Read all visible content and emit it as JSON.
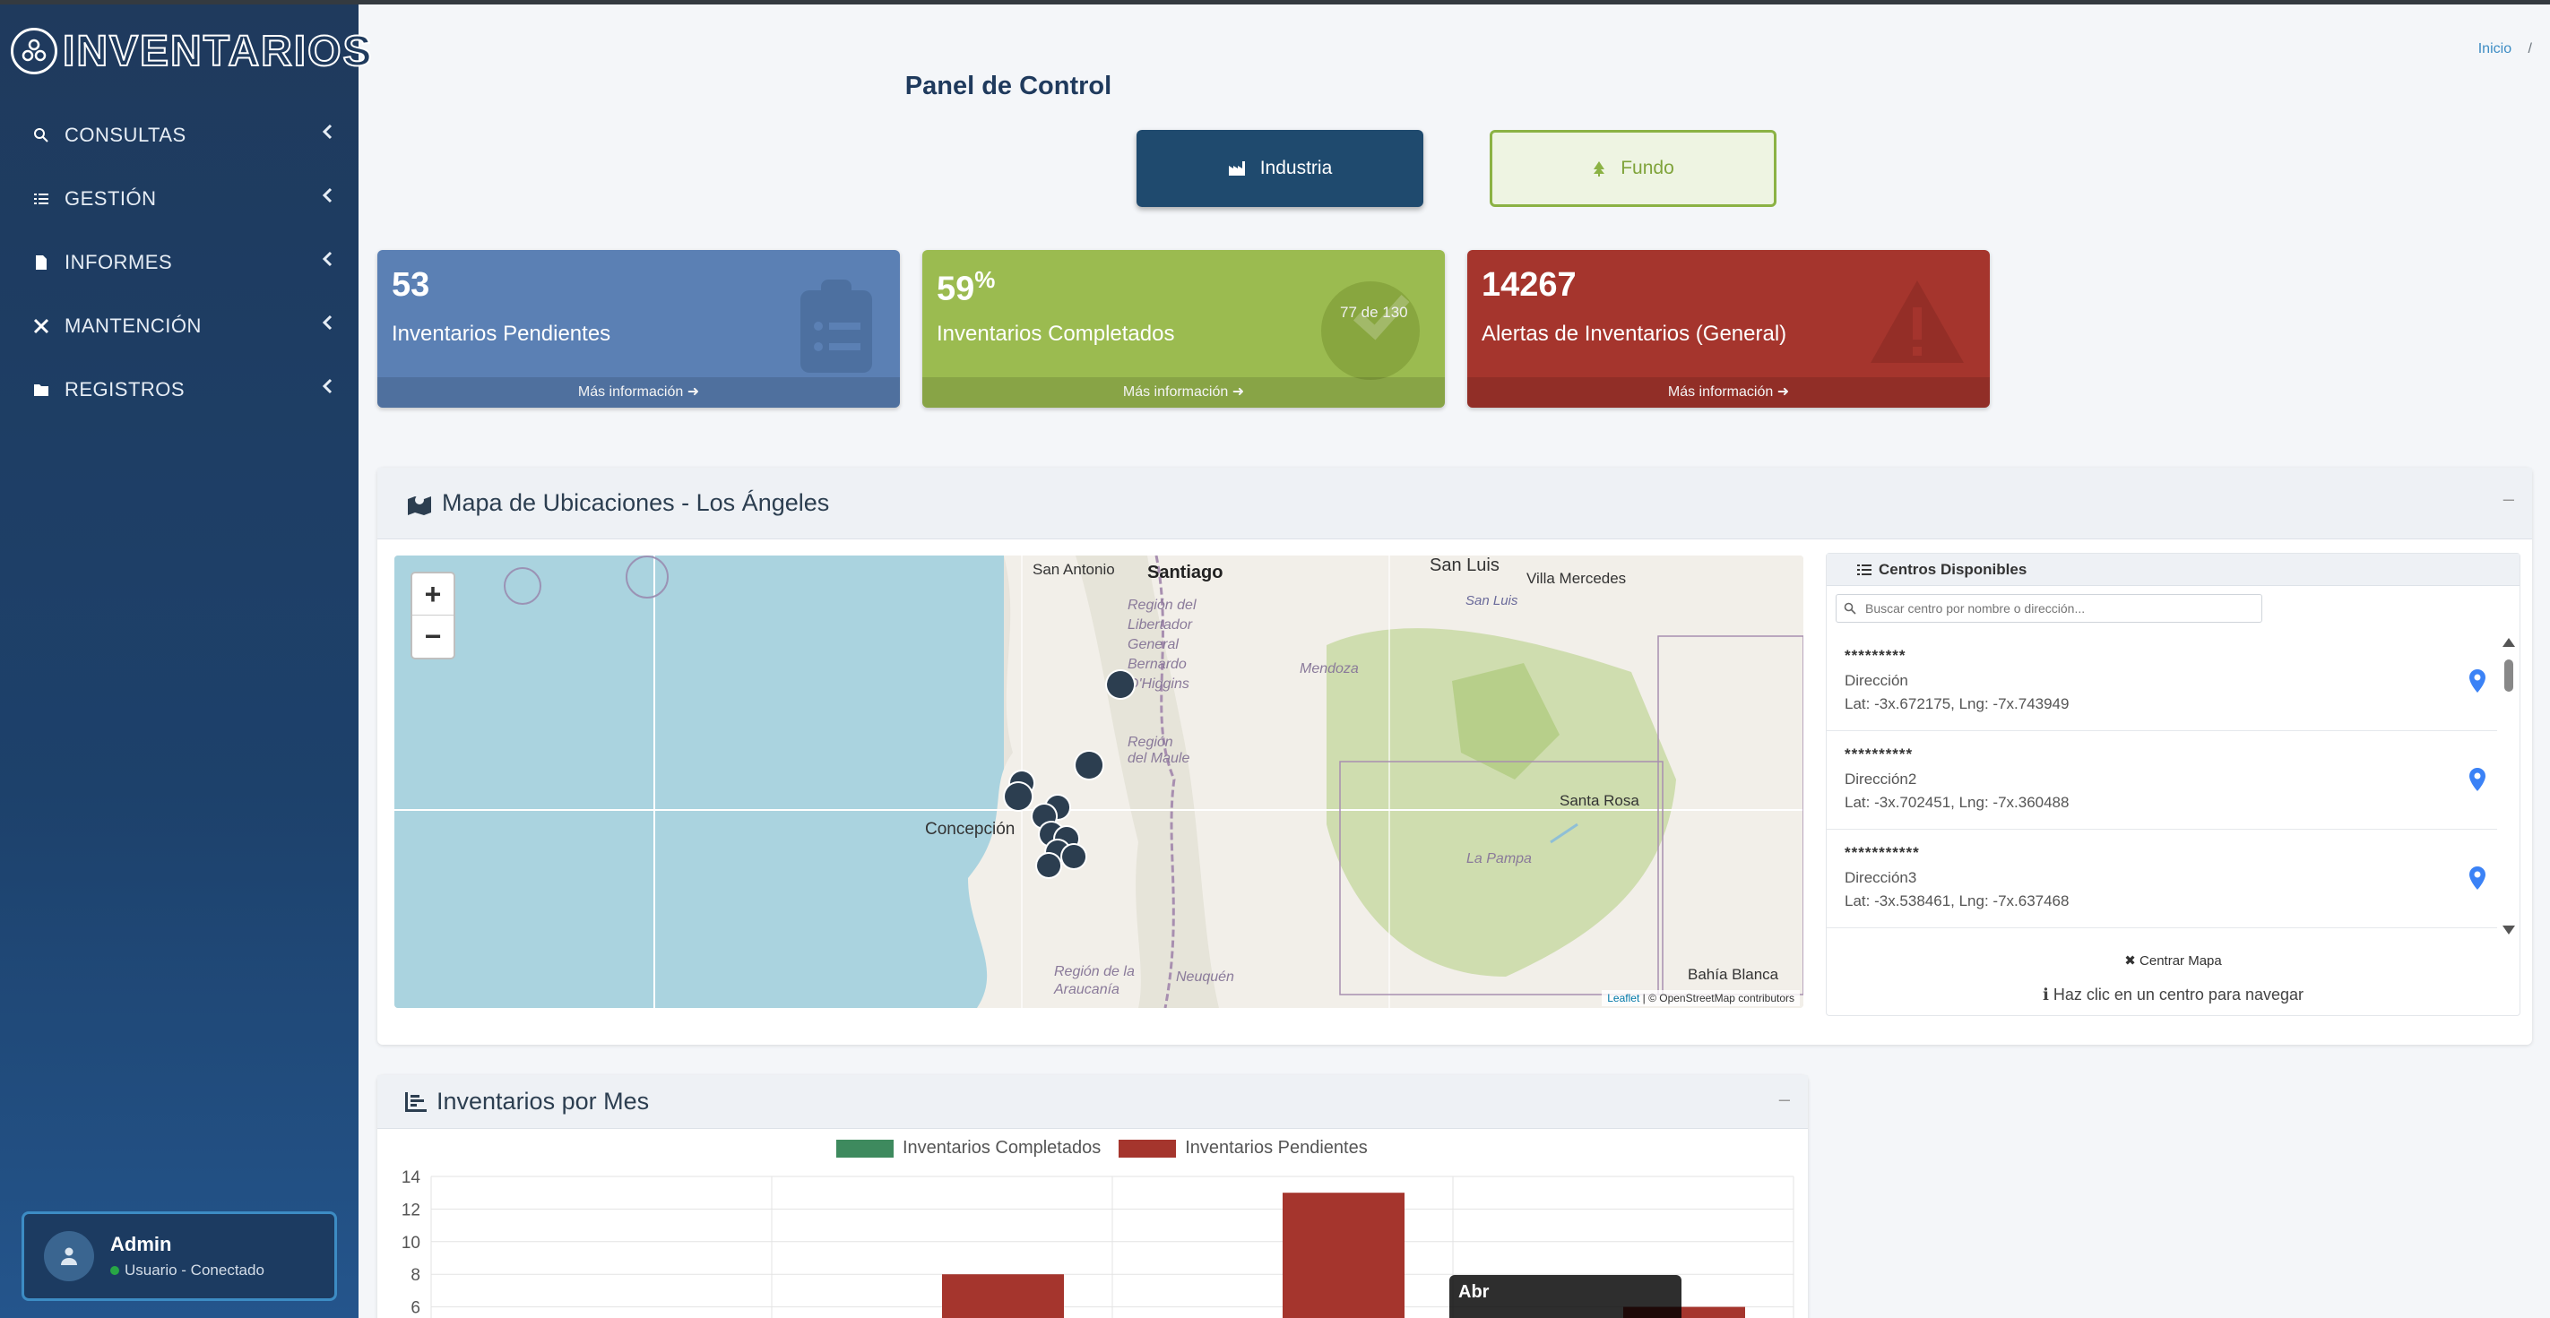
{
  "brand": {
    "name": "INVENTARIOS"
  },
  "sidebar": {
    "items": [
      {
        "label": "CONSULTAS",
        "icon": "search-icon"
      },
      {
        "label": "GESTIÓN",
        "icon": "list-icon"
      },
      {
        "label": "INFORMES",
        "icon": "file-icon"
      },
      {
        "label": "MANTENCIÓN",
        "icon": "tools-icon"
      },
      {
        "label": "REGISTROS",
        "icon": "folder-icon"
      }
    ]
  },
  "user": {
    "name": "Admin",
    "status": "Usuario - Conectado"
  },
  "breadcrumb": {
    "home": "Inicio",
    "sep": "/"
  },
  "page": {
    "title": "Panel de Control"
  },
  "toggle": {
    "industria": "Industria",
    "fundo": "Fundo"
  },
  "cards": [
    {
      "value": "53",
      "sup": "",
      "label": "Inventarios Pendientes",
      "footer": "Más información"
    },
    {
      "value": "59",
      "sup": "%",
      "label": "Inventarios Completados",
      "footer": "Más información",
      "ring": "77 de 130"
    },
    {
      "value": "14267",
      "sup": "",
      "label": "Alertas de Inventarios (General)",
      "footer": "Más información"
    }
  ],
  "map_panel": {
    "title": "Mapa de Ubicaciones - Los Ángeles",
    "labels": [
      "San Antonio",
      "Santiago",
      "San Luis",
      "Villa Mercedes",
      "San Luis",
      "Región del Libertador General Bernardo O'Higgins",
      "Mendoza",
      "Región del Maule",
      "Santa Rosa",
      "Concepción",
      "La Pampa",
      "Neuquén",
      "Región de la Araucanía",
      "Bahía Blanca"
    ],
    "attribution_leaflet": "Leaflet",
    "attribution_osm": "| © OpenStreetMap contributors",
    "zoom_in": "+",
    "zoom_out": "−"
  },
  "centers": {
    "title": "Centros Disponibles",
    "search_placeholder": "Buscar centro por nombre o dirección...",
    "items": [
      {
        "name": "*********",
        "address": "Dirección",
        "coords": "Lat: -3x.672175, Lng: -7x.743949"
      },
      {
        "name": "**********",
        "address": "Dirección2",
        "coords": "Lat: -3x.702451, Lng: -7x.360488"
      },
      {
        "name": "***********",
        "address": "Dirección3",
        "coords": "Lat: -3x.538461, Lng: -7x.637468"
      }
    ],
    "center_button": "Centrar Mapa",
    "hint": "Haz clic en un centro para navegar"
  },
  "chart_panel": {
    "title": "Inventarios por Mes"
  },
  "chart_data": {
    "type": "bar",
    "series": [
      {
        "name": "Inventarios Completados",
        "color": "#3e8a5e",
        "values": [
          0,
          0,
          0,
          0
        ]
      },
      {
        "name": "Inventarios Pendientes",
        "color": "#a5352d",
        "values": [
          0,
          8,
          13,
          6
        ]
      }
    ],
    "y_ticks": [
      "14",
      "12",
      "10",
      "8",
      "6"
    ],
    "ylim": [
      0,
      14
    ],
    "tooltip": "Abr"
  }
}
